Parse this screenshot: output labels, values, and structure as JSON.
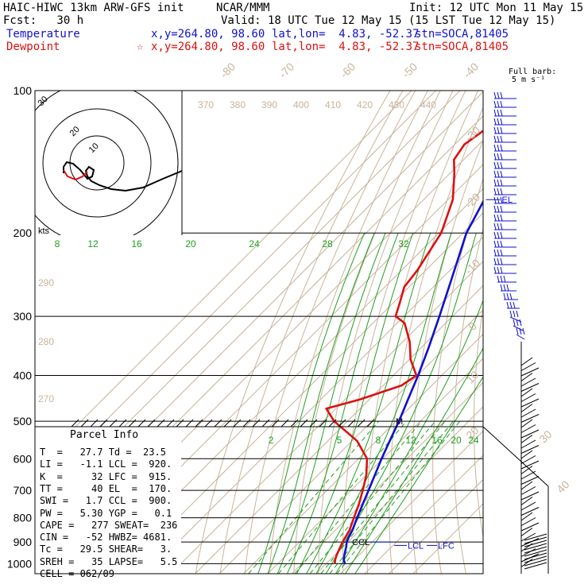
{
  "header": {
    "model": "HAIC-HIWC 13km ARW-GFS init",
    "org": "NCAR/MMM",
    "init": "Init: 12 UTC Mon 11 May 15",
    "fcst": "Fcst:   30 h",
    "valid": "Valid: 18 UTC Tue 12 May 15 (15 LST Tue 12 May 15)",
    "temp_label": "Temperature",
    "temp_xy": "x,y=264.80, 98.60",
    "temp_latlon": "lat,lon=  4.83, -52.37",
    "temp_stn": "stn=SOCA,81405",
    "dew_label": "Dewpoint",
    "dew_star": "☆",
    "dew_xy": "x,y=264.80, 98.60",
    "dew_latlon": "lat,lon=  4.83, -52.37",
    "dew_stn": "stn=SOCA,81405"
  },
  "barb_legend": {
    "line1": "Full barb:",
    "line2": "5 m s⁻¹"
  },
  "parcel": {
    "title": "Parcel Info",
    "rows": [
      "T  =   27.7 Td =  23.5",
      "LI =   -1.1 LCL =  920.",
      "K  =     32 LFC =  915.",
      "TT =     40 EL  =  170.",
      "SWI =   1.7 CCL =  900.",
      "PW =   5.30 YGP =   0.1",
      "CAPE =   277 SWEAT=  236",
      "CIN =   -52 HWBZ= 4681.",
      "Tc =   29.5 SHEAR=   3.",
      "SREH =   35 LAPSE=   5.5",
      "CELL = 062/09"
    ]
  },
  "colors": {
    "temperature": "#1010cc",
    "dewpoint": "#dd1010",
    "isotherm": "#c8b49a",
    "dry_adiabat": "#c8b49a",
    "moist_adiabat": "#20a020",
    "mixing_ratio": "#20a020",
    "isobar": "#000000",
    "label_tan": "#c8b49a"
  },
  "chart_data": {
    "type": "skew-t",
    "pressure_axis": {
      "levels": [
        100,
        200,
        300,
        400,
        500,
        600,
        700,
        800,
        900,
        1000
      ],
      "labels": [
        "100",
        "200",
        "300",
        "400",
        "500",
        "600",
        "700",
        "800",
        "900",
        "1000"
      ],
      "scale": "log",
      "ylim": [
        1000,
        100
      ]
    },
    "isotherm_labels": [
      "-80",
      "-70",
      "-60",
      "-50",
      "-40",
      "-30",
      "-20",
      "-10",
      "0",
      "10",
      "20",
      "30",
      "40"
    ],
    "isotherm_values": [
      -80,
      -70,
      -60,
      -50,
      -40,
      -30,
      -20,
      -10,
      0,
      10,
      20,
      30,
      40
    ],
    "theta_labels": [
      "370",
      "380",
      "390",
      "400",
      "410",
      "420",
      "430",
      "440"
    ],
    "theta_left_labels": [
      "290",
      "280",
      "270"
    ],
    "moist_labels": [
      "8",
      "12",
      "16",
      "20",
      "24",
      "28",
      "32"
    ],
    "mixing_labels": [
      "2",
      "5",
      "8",
      "12",
      "16",
      "20",
      "24"
    ],
    "temperature": {
      "p": [
        1000,
        980,
        960,
        940,
        920,
        900,
        880,
        850,
        800,
        750,
        700,
        650,
        600,
        550,
        500,
        450,
        400,
        350,
        300,
        250,
        200,
        170,
        150,
        120,
        100
      ],
      "t": [
        27.7,
        25.5,
        24.0,
        22.6,
        21.2,
        19.5,
        18.4,
        17.0,
        13.8,
        10.6,
        7.2,
        3.5,
        -0.5,
        -4.5,
        -8.8,
        -14.0,
        -19.8,
        -26.8,
        -35.4,
        -45.8,
        -58.6,
        -65.0,
        -70.5,
        -76.5,
        -79.5
      ]
    },
    "dewpoint": {
      "p": [
        1000,
        980,
        960,
        940,
        920,
        900,
        880,
        850,
        800,
        750,
        700,
        650,
        600,
        550,
        500,
        470,
        450,
        420,
        400,
        370,
        340,
        310,
        300,
        280,
        260,
        240,
        200,
        170,
        150,
        140,
        130,
        115,
        100
      ],
      "td": [
        23.5,
        22.0,
        20.8,
        19.8,
        18.8,
        17.8,
        17.0,
        15.8,
        12.5,
        9.0,
        4.8,
        0.0,
        -6.5,
        -18.0,
        -35.5,
        -44.0,
        -34.0,
        -22.5,
        -20.5,
        -29.5,
        -37.0,
        -47.0,
        -53.5,
        -57.5,
        -62.0,
        -63.5,
        -69.0,
        -78.0,
        -88.0,
        -94.0,
        -96.0,
        -92.0,
        -88.0
      ]
    },
    "annotations": {
      "el": "EL",
      "el_p": 170,
      "ccl": "CCL",
      "lcl": "LCL",
      "lfc": "LFC",
      "marker": "M",
      "marker_p": 500
    },
    "hodograph": {
      "rings": [
        10,
        20
      ],
      "ring_labels": [
        "10",
        "20"
      ],
      "unit_label": "kts",
      "corner_label": "30"
    },
    "barb_unit": "5 m s-1"
  }
}
